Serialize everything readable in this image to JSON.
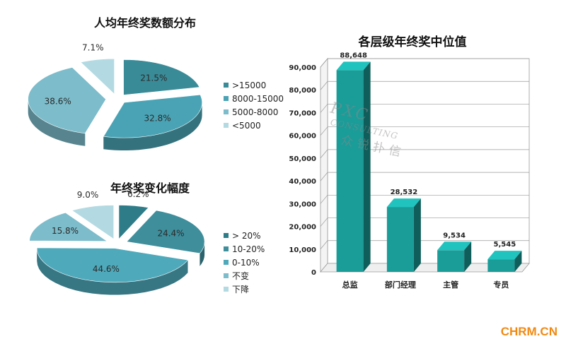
{
  "chart_data": [
    {
      "type": "pie",
      "title": "人均年终奖数额分布",
      "slices": [
        {
          "label": ">15000",
          "value": 21.5,
          "display": "21.5%",
          "color": "#3a8b98"
        },
        {
          "label": "8000-15000",
          "value": 32.8,
          "display": "32.8%",
          "color": "#4aa3b4"
        },
        {
          "label": "5000-8000",
          "value": 38.6,
          "display": "38.6%",
          "color": "#7cbccb"
        },
        {
          "label": "<5000",
          "value": 7.1,
          "display": "7.1%",
          "color": "#b3dae2"
        }
      ],
      "legend": "right"
    },
    {
      "type": "pie",
      "title": "年终奖变化幅度",
      "slices": [
        {
          "label": "> 20%",
          "value": 6.2,
          "display": "6.2%",
          "color": "#2f7c89"
        },
        {
          "label": "10-20%",
          "value": 24.4,
          "display": "24.4%",
          "color": "#3e8e9c"
        },
        {
          "label": "0-10%",
          "value": 44.6,
          "display": "44.6%",
          "color": "#4ea9bb"
        },
        {
          "label": "不变",
          "value": 15.8,
          "display": "15.8%",
          "color": "#7cbccb"
        },
        {
          "label": "下降",
          "value": 9.0,
          "display": "9.0%",
          "color": "#b3dae2"
        }
      ],
      "legend": "right"
    },
    {
      "type": "bar",
      "title": "各层级年终奖中位值",
      "categories": [
        "总监",
        "部门经理",
        "主管",
        "专员"
      ],
      "values": [
        88648,
        28532,
        9534,
        5545
      ],
      "value_labels": [
        "88,648",
        "28,532",
        "9,534",
        "5,545"
      ],
      "ylim": [
        0,
        90000
      ],
      "yticks": [
        "0",
        "10,000",
        "20,000",
        "30,000",
        "40,000",
        "50,000",
        "60,000",
        "70,000",
        "80,000",
        "90,000"
      ],
      "grid": true,
      "bar_color": "#1a9c98"
    }
  ],
  "watermark": {
    "line1": "PXC",
    "line2": "CONSULTING",
    "line3": "众锐扑信"
  },
  "brand": "CHRM.CN"
}
